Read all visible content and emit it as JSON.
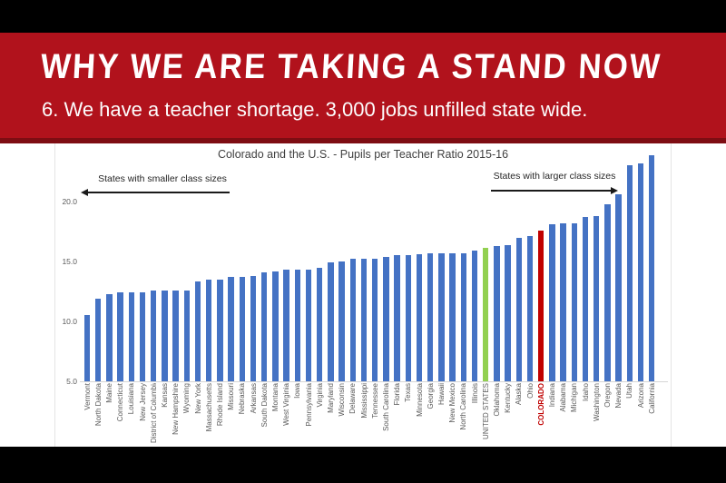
{
  "slide": {
    "title": "WHY WE ARE TAKING A STAND NOW",
    "subtitle": "6. We have a teacher shortage. 3,000 jobs unfilled state wide."
  },
  "colors": {
    "banner_red": "#B1121C",
    "banner_strip": "#7E0D13",
    "bar_blue": "#4472C4",
    "bar_green": "#92D050",
    "bar_red": "#C00000",
    "axis_text": "#595959",
    "letterbox": "#000000"
  },
  "chart_data": {
    "type": "bar",
    "title": "Colorado and the U.S. - Pupils per Teacher Ratio 2015-16",
    "xlabel": "",
    "ylabel": "",
    "ylim": [
      5.0,
      24.0
    ],
    "yticks": [
      5.0,
      10.0,
      15.0,
      20.0
    ],
    "grid": false,
    "legend": false,
    "annotations": {
      "left": "States with smaller class sizes",
      "right": "States with larger class sizes"
    },
    "bar_color_default": "#4472C4",
    "highlights": [
      {
        "category": "UNITED STATES",
        "bar_color": "#92D050",
        "label_style": "default"
      },
      {
        "category": "COLORADO",
        "bar_color": "#C00000",
        "label_style": "red-bold"
      }
    ],
    "categories": [
      "Vermont",
      "North Dakota",
      "Maine",
      "Connecticut",
      "Louisiana",
      "New Jersey",
      "District of Columbia",
      "Kansas",
      "New Hampshire",
      "Wyoming",
      "New York",
      "Massachusetts",
      "Rhode Island",
      "Missouri",
      "Nebraska",
      "Arkansas",
      "South Dakota",
      "Montana",
      "West Virginia",
      "Iowa",
      "Pennsylvania",
      "Virginia",
      "Maryland",
      "Wisconsin",
      "Delaware",
      "Mississippi",
      "Tennessee",
      "South Carolina",
      "Florida",
      "Texas",
      "Minnesota",
      "Georgia",
      "Hawaii",
      "New Mexico",
      "North Carolina",
      "Illinois",
      "UNITED STATES",
      "Oklahoma",
      "Kentucky",
      "Alaska",
      "Ohio",
      "COLORADO",
      "Indiana",
      "Alabama",
      "Michigan",
      "Idaho",
      "Washington",
      "Oregon",
      "Nevada",
      "Utah",
      "Arizona",
      "California"
    ],
    "values": [
      10.5,
      11.9,
      12.3,
      12.4,
      12.4,
      12.4,
      12.6,
      12.6,
      12.6,
      12.6,
      13.3,
      13.5,
      13.5,
      13.7,
      13.7,
      13.8,
      14.1,
      14.2,
      14.3,
      14.3,
      14.3,
      14.5,
      14.9,
      15.0,
      15.2,
      15.2,
      15.2,
      15.4,
      15.5,
      15.5,
      15.6,
      15.7,
      15.7,
      15.7,
      15.7,
      15.9,
      16.1,
      16.3,
      16.4,
      17.0,
      17.1,
      17.6,
      18.1,
      18.2,
      18.2,
      18.7,
      18.8,
      19.8,
      20.6,
      23.0,
      23.2,
      23.9
    ]
  }
}
